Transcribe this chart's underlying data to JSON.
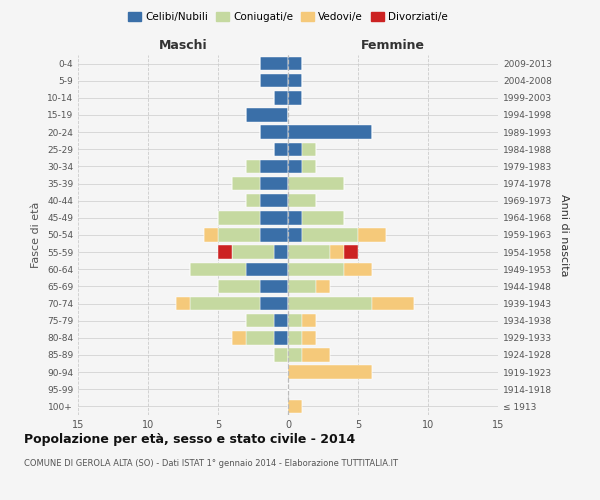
{
  "age_groups": [
    "100+",
    "95-99",
    "90-94",
    "85-89",
    "80-84",
    "75-79",
    "70-74",
    "65-69",
    "60-64",
    "55-59",
    "50-54",
    "45-49",
    "40-44",
    "35-39",
    "30-34",
    "25-29",
    "20-24",
    "15-19",
    "10-14",
    "5-9",
    "0-4"
  ],
  "birth_years": [
    "≤ 1913",
    "1914-1918",
    "1919-1923",
    "1924-1928",
    "1929-1933",
    "1934-1938",
    "1939-1943",
    "1944-1948",
    "1949-1953",
    "1954-1958",
    "1959-1963",
    "1964-1968",
    "1969-1973",
    "1974-1978",
    "1979-1983",
    "1984-1988",
    "1989-1993",
    "1994-1998",
    "1999-2003",
    "2004-2008",
    "2009-2013"
  ],
  "males": {
    "celibi": [
      0,
      0,
      0,
      0,
      1,
      1,
      2,
      2,
      3,
      1,
      2,
      2,
      2,
      2,
      2,
      1,
      2,
      3,
      1,
      2,
      2
    ],
    "coniugati": [
      0,
      0,
      0,
      1,
      2,
      2,
      5,
      3,
      4,
      3,
      3,
      3,
      1,
      2,
      1,
      0,
      0,
      0,
      0,
      0,
      0
    ],
    "vedovi": [
      0,
      0,
      0,
      0,
      1,
      0,
      1,
      0,
      0,
      0,
      1,
      0,
      0,
      0,
      0,
      0,
      0,
      0,
      0,
      0,
      0
    ],
    "divorziati": [
      0,
      0,
      0,
      0,
      0,
      0,
      0,
      0,
      0,
      1,
      0,
      0,
      0,
      0,
      0,
      0,
      0,
      0,
      0,
      0,
      0
    ]
  },
  "females": {
    "nubili": [
      0,
      0,
      0,
      0,
      0,
      0,
      0,
      0,
      0,
      0,
      1,
      1,
      0,
      0,
      1,
      1,
      6,
      0,
      1,
      1,
      1
    ],
    "coniugate": [
      0,
      0,
      0,
      1,
      1,
      1,
      6,
      2,
      4,
      3,
      4,
      3,
      2,
      4,
      1,
      1,
      0,
      0,
      0,
      0,
      0
    ],
    "vedove": [
      1,
      0,
      6,
      2,
      1,
      1,
      3,
      1,
      2,
      1,
      2,
      0,
      0,
      0,
      0,
      0,
      0,
      0,
      0,
      0,
      0
    ],
    "divorziate": [
      0,
      0,
      0,
      0,
      0,
      0,
      0,
      0,
      0,
      1,
      0,
      0,
      0,
      0,
      0,
      0,
      0,
      0,
      0,
      0,
      0
    ]
  },
  "colors": {
    "celibi": "#3a6fa8",
    "coniugati": "#c5d9a0",
    "vedovi": "#f5c97a",
    "divorziati": "#cc2222"
  },
  "xlim": 15,
  "title": "Popolazione per età, sesso e stato civile - 2014",
  "subtitle": "COMUNE DI GEROLA ALTA (SO) - Dati ISTAT 1° gennaio 2014 - Elaborazione TUTTITALIA.IT",
  "ylabel_left": "Fasce di età",
  "ylabel_right": "Anni di nascita",
  "xlabel_left": "Maschi",
  "xlabel_right": "Femmine",
  "legend_labels": [
    "Celibi/Nubili",
    "Coniugati/e",
    "Vedovi/e",
    "Divorziati/e"
  ],
  "bg_color": "#f5f5f5",
  "grid_color": "#cccccc"
}
